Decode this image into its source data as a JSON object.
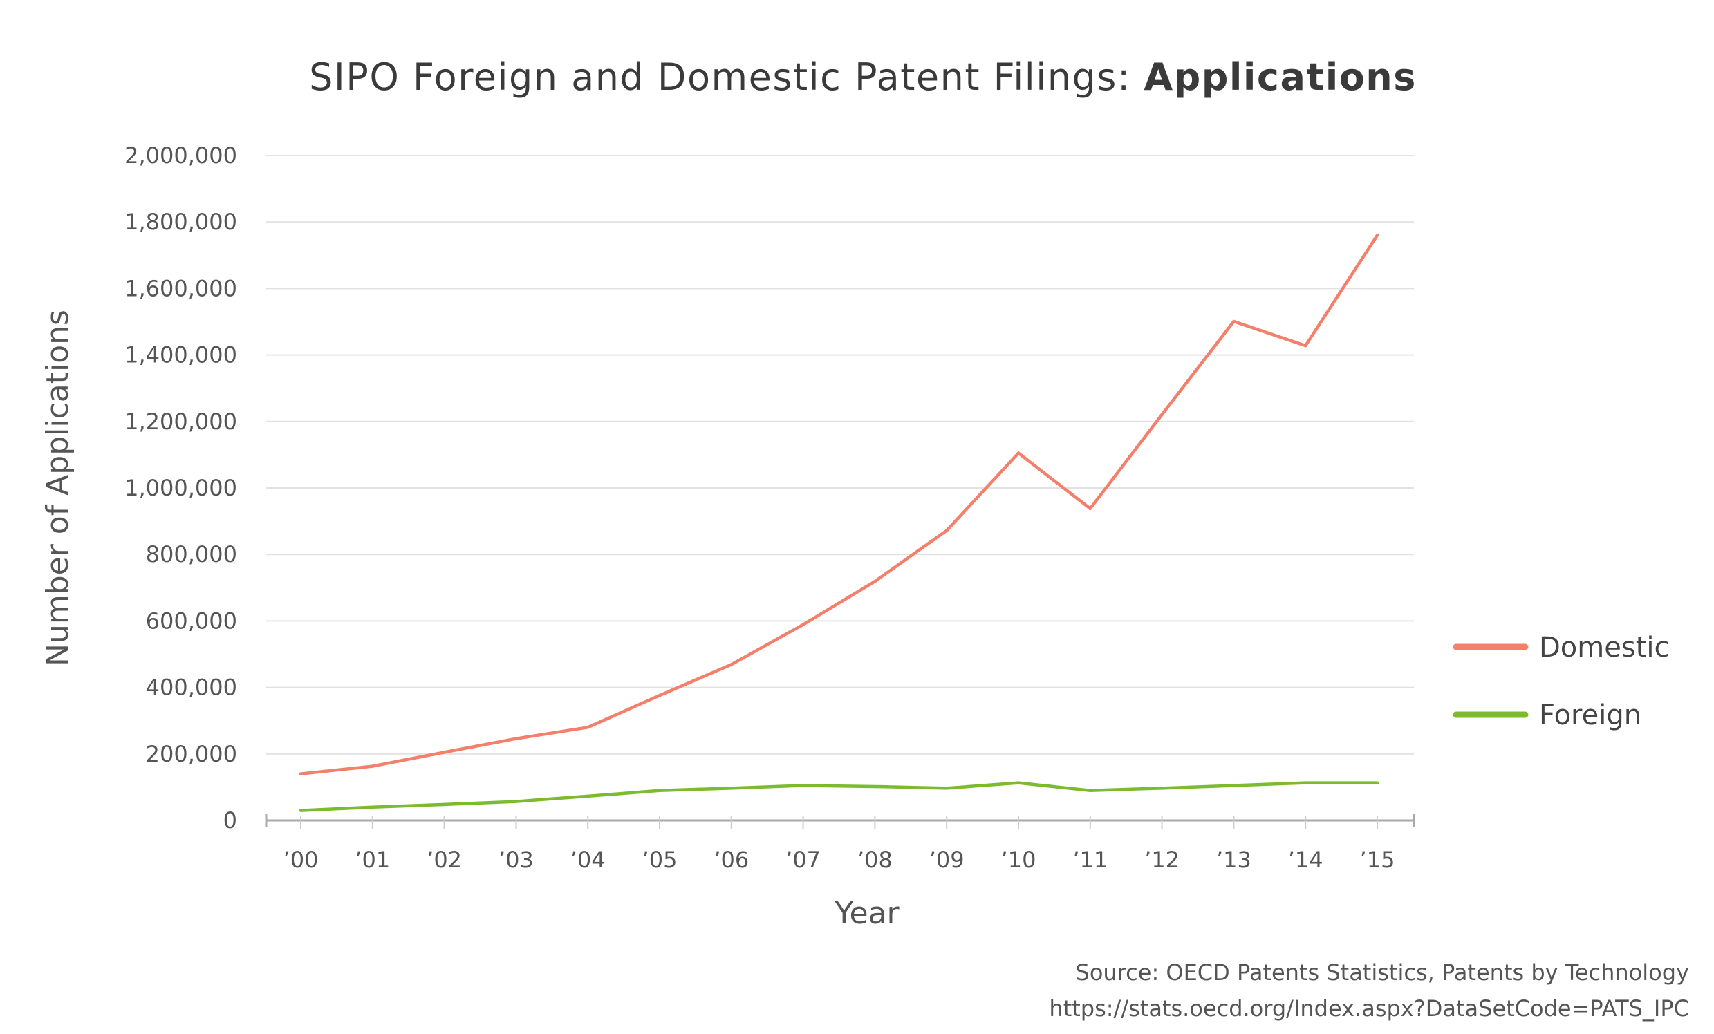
{
  "chart_data": {
    "type": "line",
    "title": "SIPO Foreign and Domestic Patent Filings: ",
    "title_bold": "Applications",
    "xlabel": "Year",
    "ylabel": "Number of Applications",
    "categories": [
      "’00",
      "’01",
      "’02",
      "’03",
      "’04",
      "’05",
      "’06",
      "’07",
      "’08",
      "’09",
      "’10",
      "’11",
      "’12",
      "’13",
      "’14",
      "’15"
    ],
    "ylim": [
      0,
      2000000
    ],
    "yticks": [
      0,
      200000,
      400000,
      600000,
      800000,
      1000000,
      1200000,
      1400000,
      1600000,
      1800000,
      2000000
    ],
    "ytick_labels": [
      "0",
      "200,000",
      "400,000",
      "600,000",
      "800,000",
      "1,000,000",
      "1,200,000",
      "1,400,000",
      "1,600,000",
      "1,800,000",
      "2,000,000"
    ],
    "grid": true,
    "legend_position": "right",
    "series": [
      {
        "name": "Domestic",
        "color": "#f47f6b",
        "values": [
          140000,
          163000,
          205000,
          246000,
          280000,
          376000,
          469000,
          589000,
          719000,
          872000,
          1105000,
          938000,
          1221000,
          1501000,
          1428000,
          1760000
        ]
      },
      {
        "name": "Foreign",
        "color": "#7dbb2e",
        "values": [
          30000,
          40000,
          48000,
          57000,
          73000,
          90000,
          97000,
          105000,
          102000,
          97000,
          113000,
          90000,
          97000,
          105000,
          113000,
          113000
        ]
      }
    ],
    "source_line1": "Source:  OECD Patents Statistics, Patents by Technology",
    "source_line2": "https://stats.oecd.org/Index.aspx?DataSetCode=PATS_IPC"
  }
}
